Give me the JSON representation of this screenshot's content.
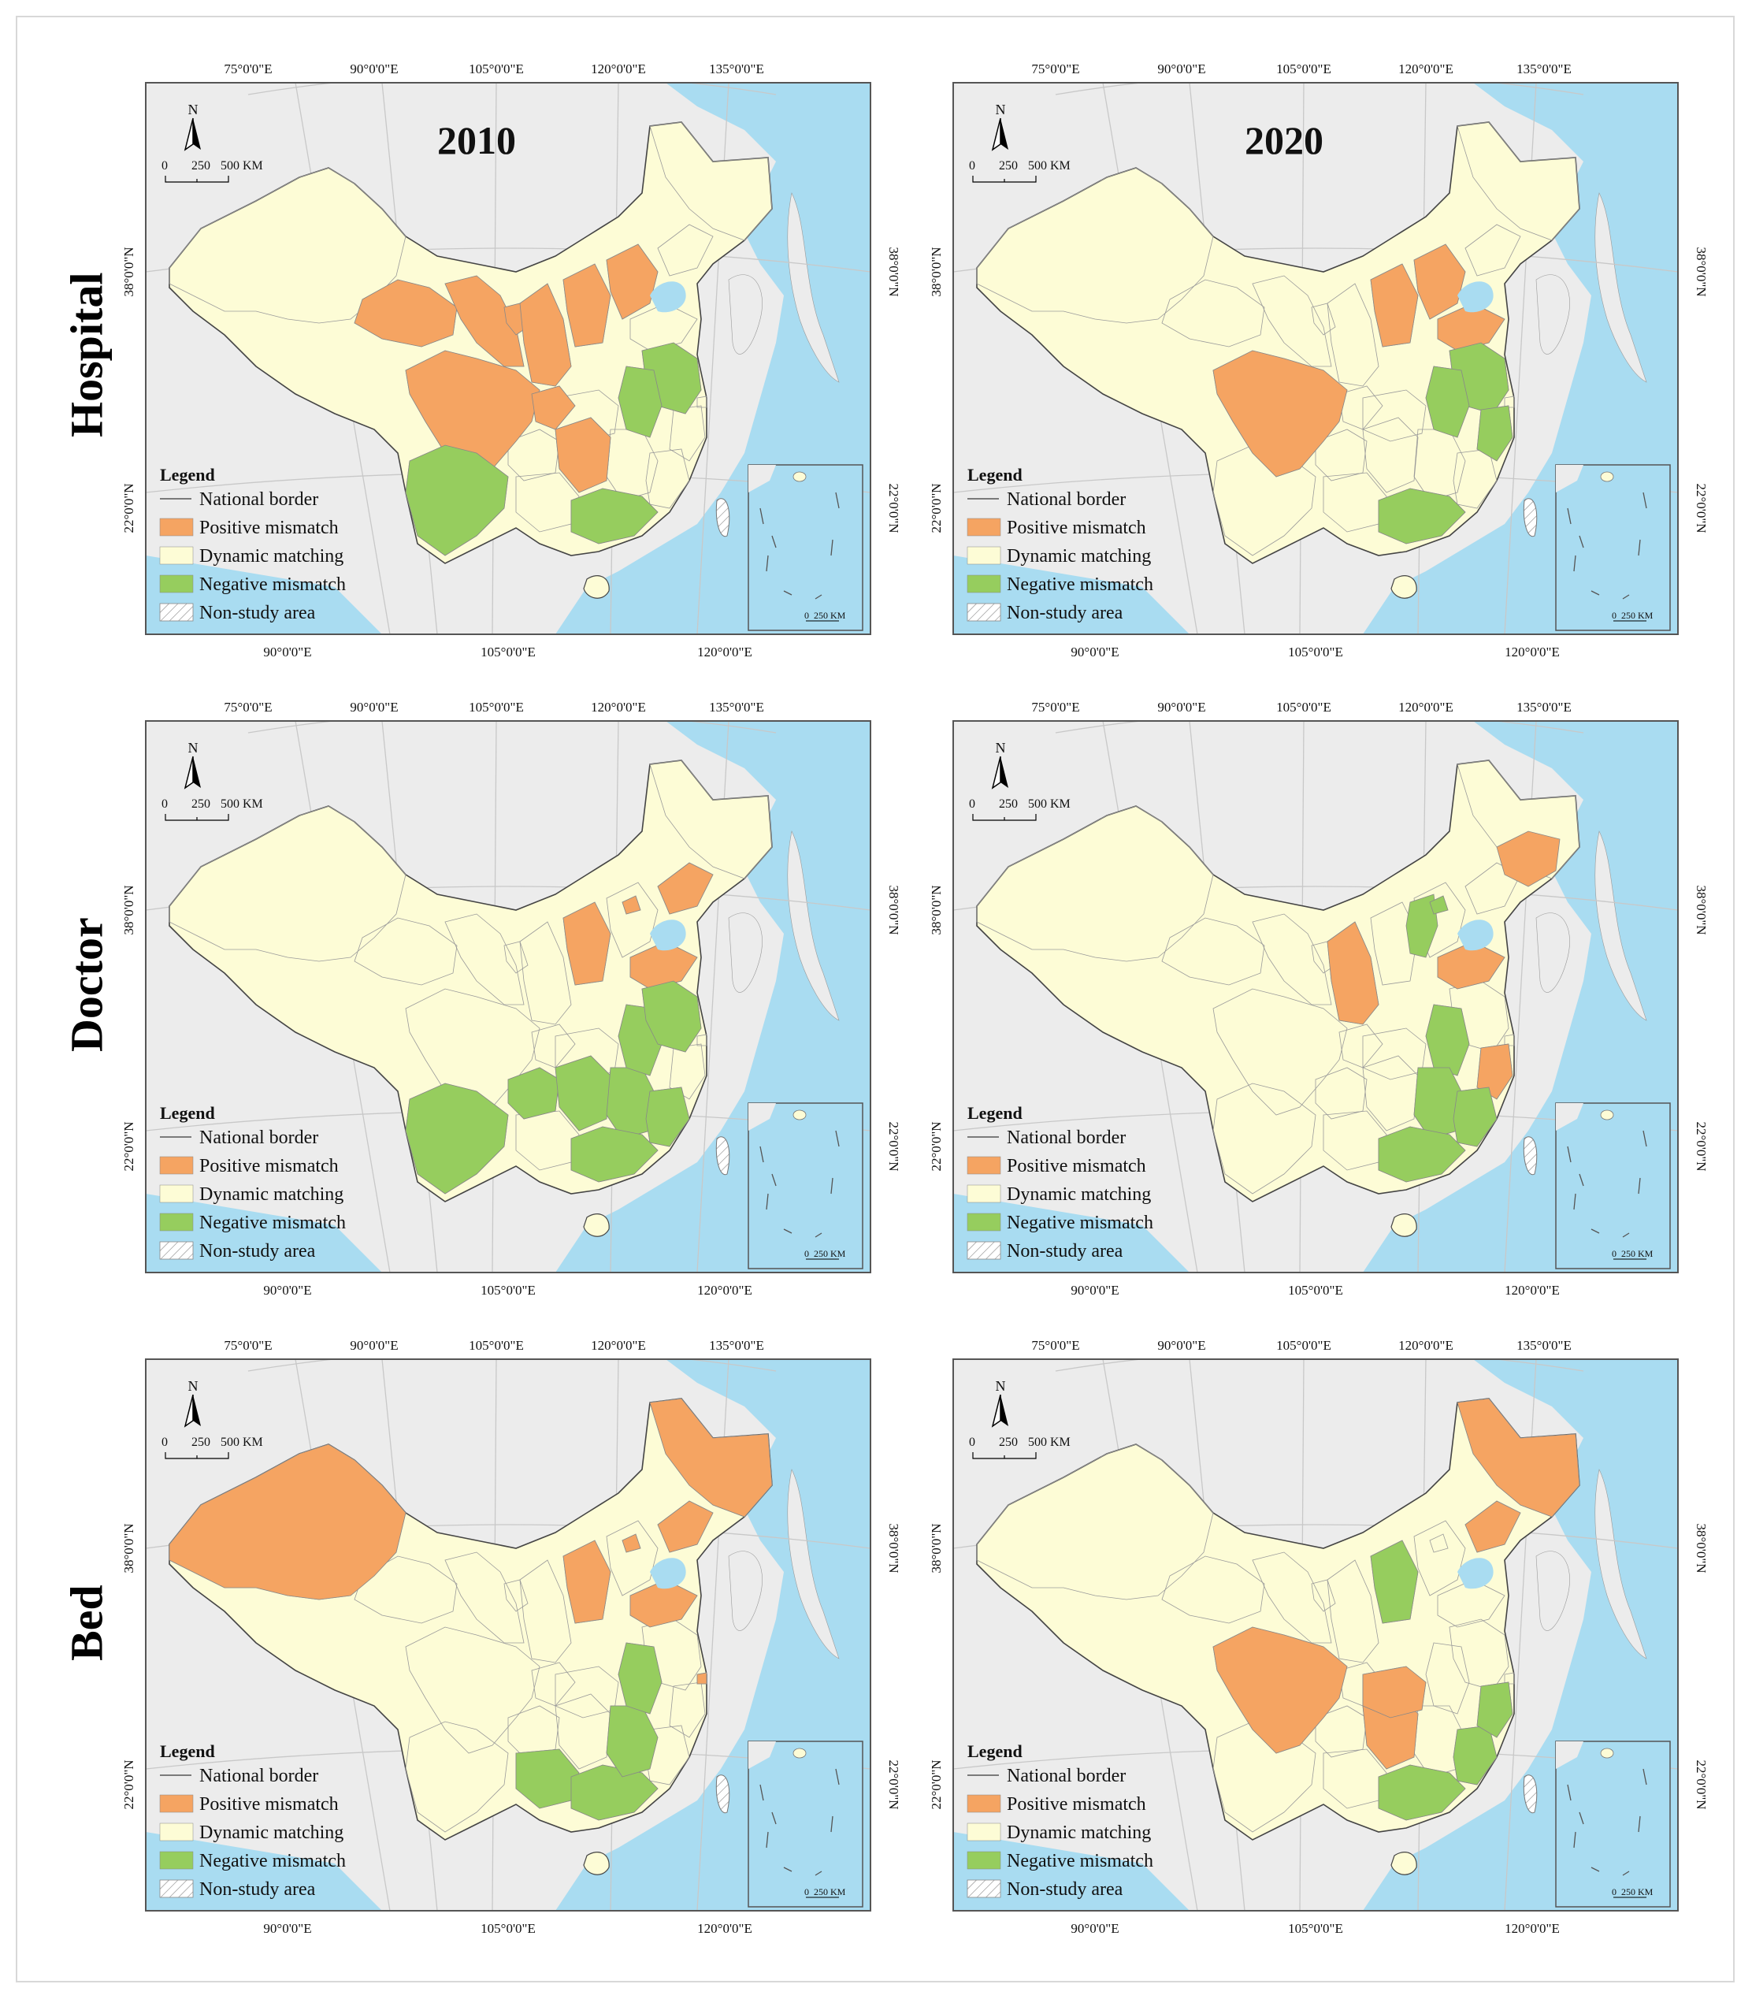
{
  "rows": [
    "Hospital",
    "Doctor",
    "Bed"
  ],
  "years": [
    "2010",
    "2020"
  ],
  "top_lon_labels": [
    "75°0'0\"E",
    "90°0'0\"E",
    "105°0'0\"E",
    "120°0'0\"E",
    "135°0'0\"E"
  ],
  "bottom_lon_labels": [
    "90°0'0\"E",
    "105°0'0\"E",
    "120°0'0\"E"
  ],
  "lat_labels": [
    "38°0'0\"N",
    "22°0'0\"N"
  ],
  "north_label": "N",
  "scalebar": [
    "0",
    "250",
    "500 KM"
  ],
  "inset_scale": [
    "0",
    "250 KM"
  ],
  "legend": {
    "title": "Legend",
    "items": [
      {
        "label": "National border",
        "kind": "line",
        "color": "#555555"
      },
      {
        "label": "Positive mismatch",
        "kind": "fill",
        "color": "#f5a462"
      },
      {
        "label": "Dynamic matching",
        "kind": "fill",
        "color": "#fdfcd6"
      },
      {
        "label": "Negative mismatch",
        "kind": "fill",
        "color": "#96cd5e"
      },
      {
        "label": "Non-study area",
        "kind": "hatch",
        "color": "#ffffff"
      }
    ]
  },
  "colors": {
    "sea": "#a9dcf1",
    "land_other": "#ececec",
    "positive": "#f5a462",
    "dynamic": "#fdfcd6",
    "negative": "#96cd5e",
    "border": "#444444",
    "graticule": "#c8c8c8"
  },
  "panel_regions": {
    "Hospital-2010": {
      "positive": [
        "Qinghai",
        "Sichuan",
        "Chongqing",
        "Gansu",
        "Ningxia",
        "Shaanxi",
        "Shanxi",
        "Hebei",
        "Hunan"
      ],
      "negative": [
        "Yunnan",
        "Jiangsu",
        "Anhui",
        "Guangdong"
      ]
    },
    "Hospital-2020": {
      "positive": [
        "Sichuan",
        "Shanxi",
        "Hebei",
        "Shandong"
      ],
      "negative": [
        "Jiangsu",
        "Anhui",
        "Guangdong",
        "Zhejiang"
      ]
    },
    "Doctor-2010": {
      "positive": [
        "Liaoning",
        "Beijing",
        "Shanxi",
        "Shandong"
      ],
      "negative": [
        "Yunnan",
        "Guizhou",
        "Hunan",
        "Jiangxi",
        "Anhui",
        "Jiangsu",
        "Guangdong",
        "Fujian"
      ]
    },
    "Doctor-2020": {
      "positive": [
        "Heilongjiang-east",
        "Shaanxi",
        "Shandong",
        "Zhejiang"
      ],
      "negative": [
        "Inner-Mongolia-south",
        "Beijing",
        "Anhui",
        "Jiangxi",
        "Fujian",
        "Guangdong"
      ]
    },
    "Bed-2010": {
      "positive": [
        "Xinjiang",
        "Heilongjiang",
        "Liaoning",
        "Beijing",
        "Shanxi",
        "Shandong",
        "Shanghai"
      ],
      "negative": [
        "Guangxi",
        "Guangdong",
        "Jiangxi",
        "Anhui"
      ]
    },
    "Bed-2020": {
      "positive": [
        "Heilongjiang",
        "Liaoning",
        "Sichuan",
        "Hunan",
        "Hubei"
      ],
      "negative": [
        "Shanxi",
        "Guangdong",
        "Fujian",
        "Zhejiang"
      ]
    }
  }
}
